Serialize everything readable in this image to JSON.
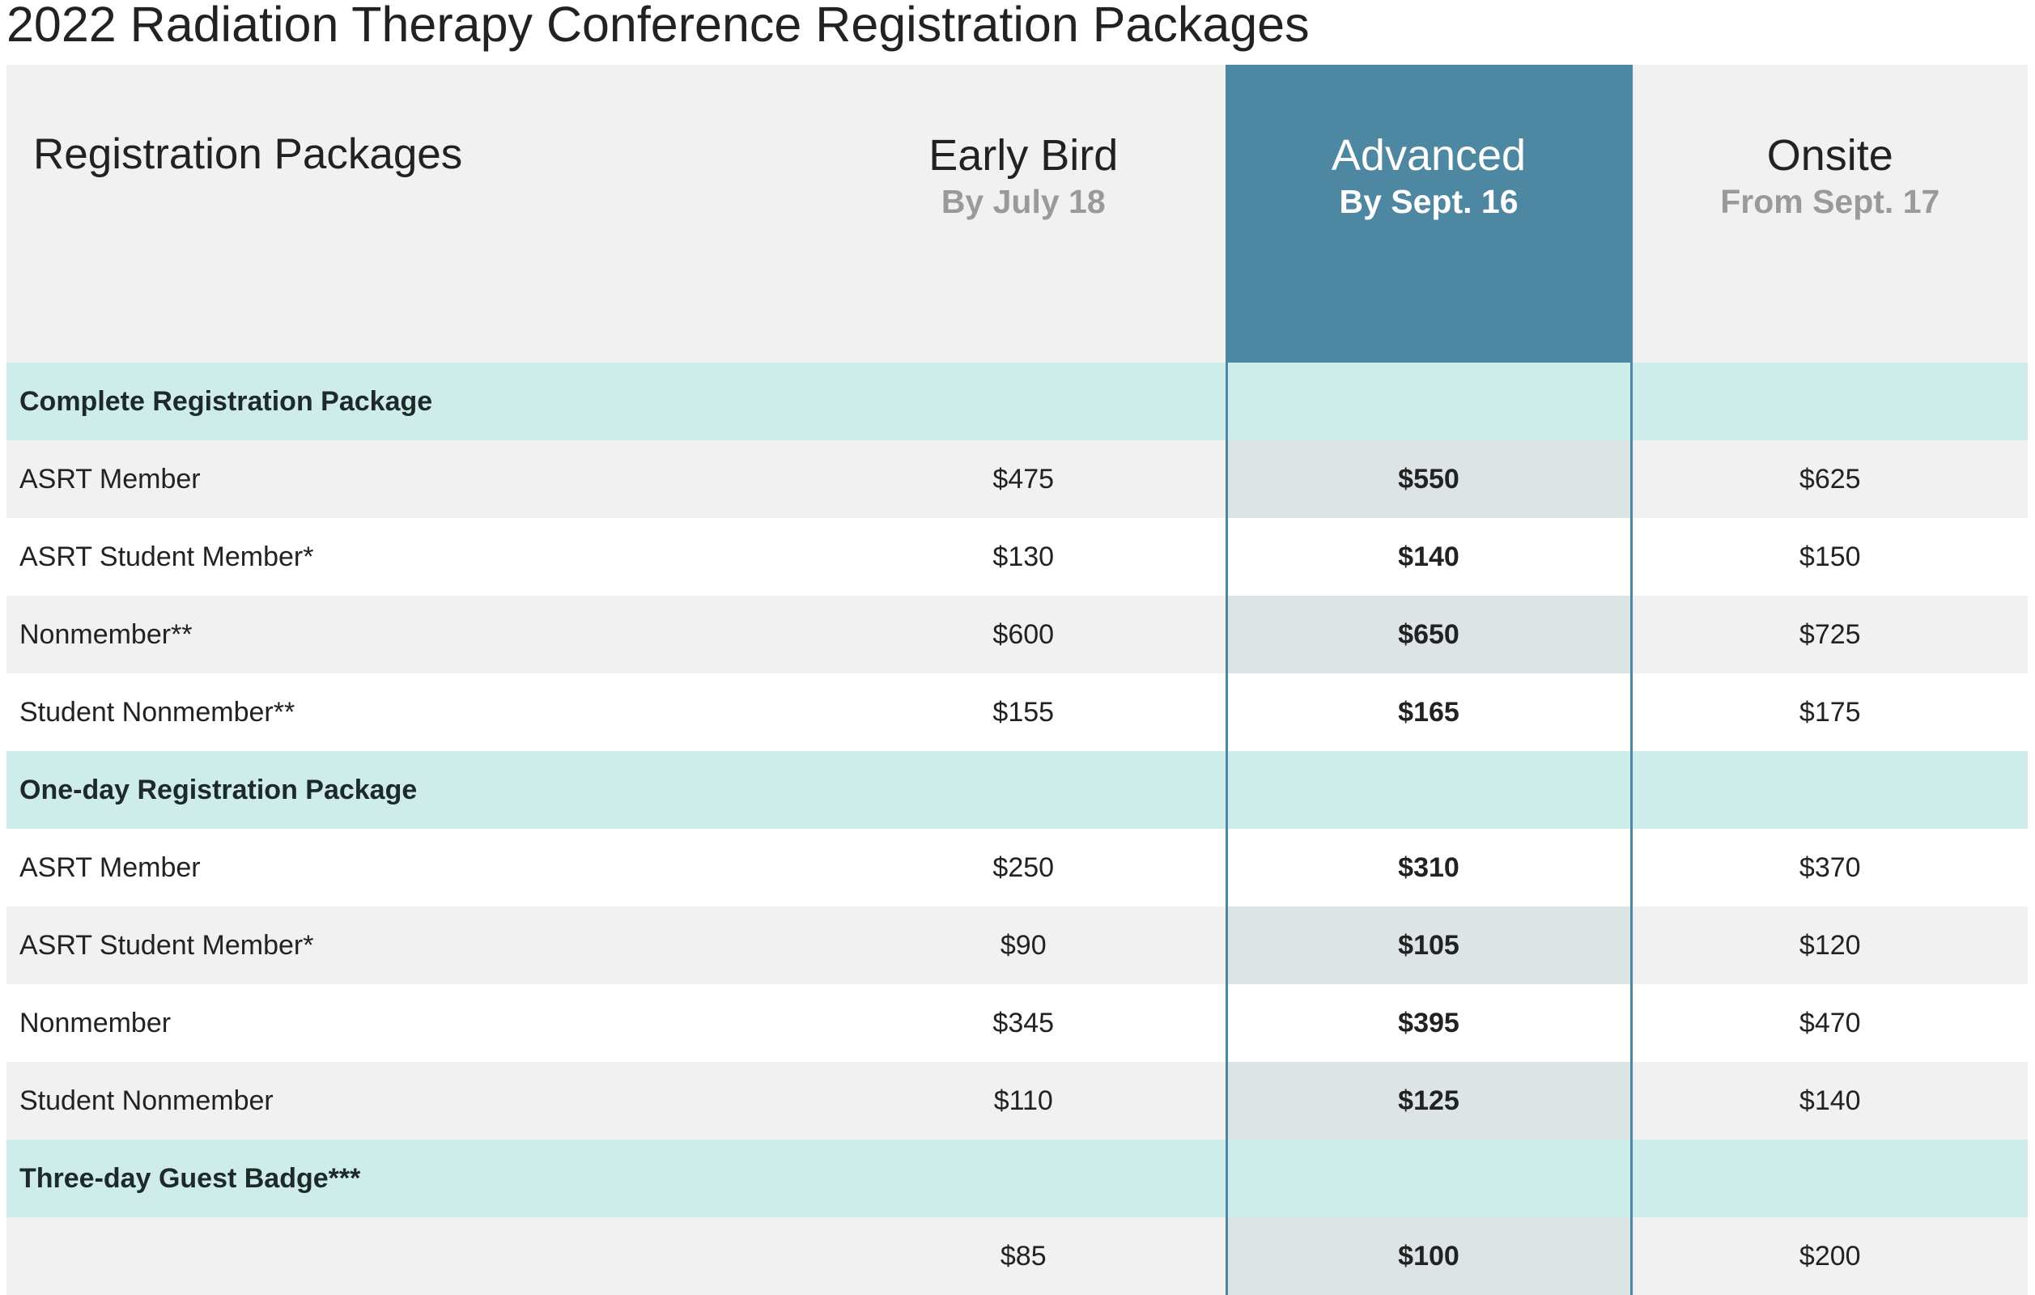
{
  "title": "2022 Radiation Therapy Conference Registration Packages",
  "colors": {
    "featured": "#4e87a2",
    "section_band": "#cdecea",
    "stripe": "#f1f1f1",
    "featured_stripe": "#dde4e6"
  },
  "header": {
    "label": "Registration Packages",
    "tiers": [
      {
        "name": "Early Bird",
        "sub": "By July 18"
      },
      {
        "name": "Advanced",
        "sub": "By Sept. 16"
      },
      {
        "name": "Onsite",
        "sub": "From Sept. 17"
      }
    ]
  },
  "sections": [
    {
      "title": "Complete Registration Package",
      "rows": [
        {
          "label": "ASRT Member",
          "prices": [
            "$475",
            "$550",
            "$625"
          ]
        },
        {
          "label": "ASRT Student Member*",
          "prices": [
            "$130",
            "$140",
            "$150"
          ]
        },
        {
          "label": "Nonmember**",
          "prices": [
            "$600",
            "$650",
            "$725"
          ]
        },
        {
          "label": "Student Nonmember**",
          "prices": [
            "$155",
            "$165",
            "$175"
          ]
        }
      ]
    },
    {
      "title": "One-day Registration Package",
      "rows": [
        {
          "label": "ASRT Member",
          "prices": [
            "$250",
            "$310",
            "$370"
          ]
        },
        {
          "label": "ASRT Student Member*",
          "prices": [
            "$90",
            "$105",
            "$120"
          ]
        },
        {
          "label": "Nonmember",
          "prices": [
            "$345",
            "$395",
            "$470"
          ]
        },
        {
          "label": "Student Nonmember",
          "prices": [
            "$110",
            "$125",
            "$140"
          ]
        }
      ]
    },
    {
      "title": "Three-day Guest Badge***",
      "rows": [
        {
          "label": "",
          "prices": [
            "$85",
            "$100",
            "$200"
          ]
        }
      ]
    }
  ]
}
